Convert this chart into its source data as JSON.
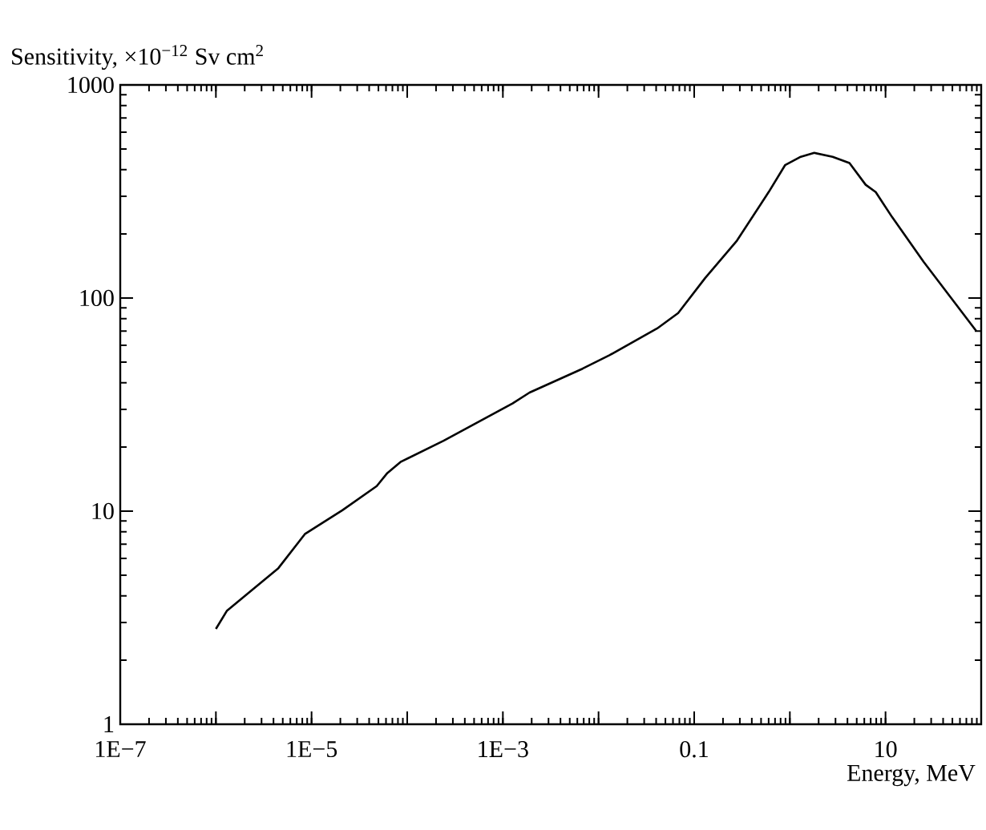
{
  "chart_data": {
    "type": "line",
    "xlabel": "Energy, MeV",
    "ylabel": "Sensitivity, ×10$^{−12}$ Sv cm$^{2}$",
    "log": "xy",
    "grid": false,
    "marker": "none",
    "line_style": "solid",
    "xlim": [
      1e-07,
      100
    ],
    "ylim": [
      1,
      1000
    ],
    "xticks": [
      {
        "value": 1e-07,
        "label": "1E−7"
      },
      {
        "value": 1e-06,
        "label": null
      },
      {
        "value": 1e-05,
        "label": "1E−5"
      },
      {
        "value": 0.0001,
        "label": null
      },
      {
        "value": 0.001,
        "label": "1E−3"
      },
      {
        "value": 0.01,
        "label": null
      },
      0.1,
      {
        "value": 1,
        "label": null
      },
      10,
      {
        "value": 100,
        "label": null
      }
    ],
    "yticks": [
      1,
      10,
      100,
      1000
    ],
    "x": [
      1e-06,
      1.3e-06,
      2.6e-06,
      4.5e-06,
      8.5e-06,
      1.1e-05,
      2.1e-05,
      4.8e-05,
      6.2e-05,
      8.5e-05,
      0.00024,
      0.00126,
      0.0019,
      0.0068,
      0.013,
      0.041,
      0.068,
      0.13,
      0.28,
      0.6,
      0.89,
      1.3,
      1.8,
      2.8,
      4.2,
      6.2,
      7.9,
      11.7,
      25,
      89
    ],
    "series": [
      {
        "color": "#000000",
        "values": [
          2.8,
          3.4,
          4.4,
          5.4,
          7.8,
          8.4,
          10.1,
          13.1,
          15.1,
          17,
          21.4,
          32,
          36,
          46.6,
          53.9,
          72,
          85,
          124,
          186,
          314,
          420,
          460,
          480,
          460,
          430,
          340,
          314,
          240,
          148,
          70
        ]
      }
    ]
  }
}
